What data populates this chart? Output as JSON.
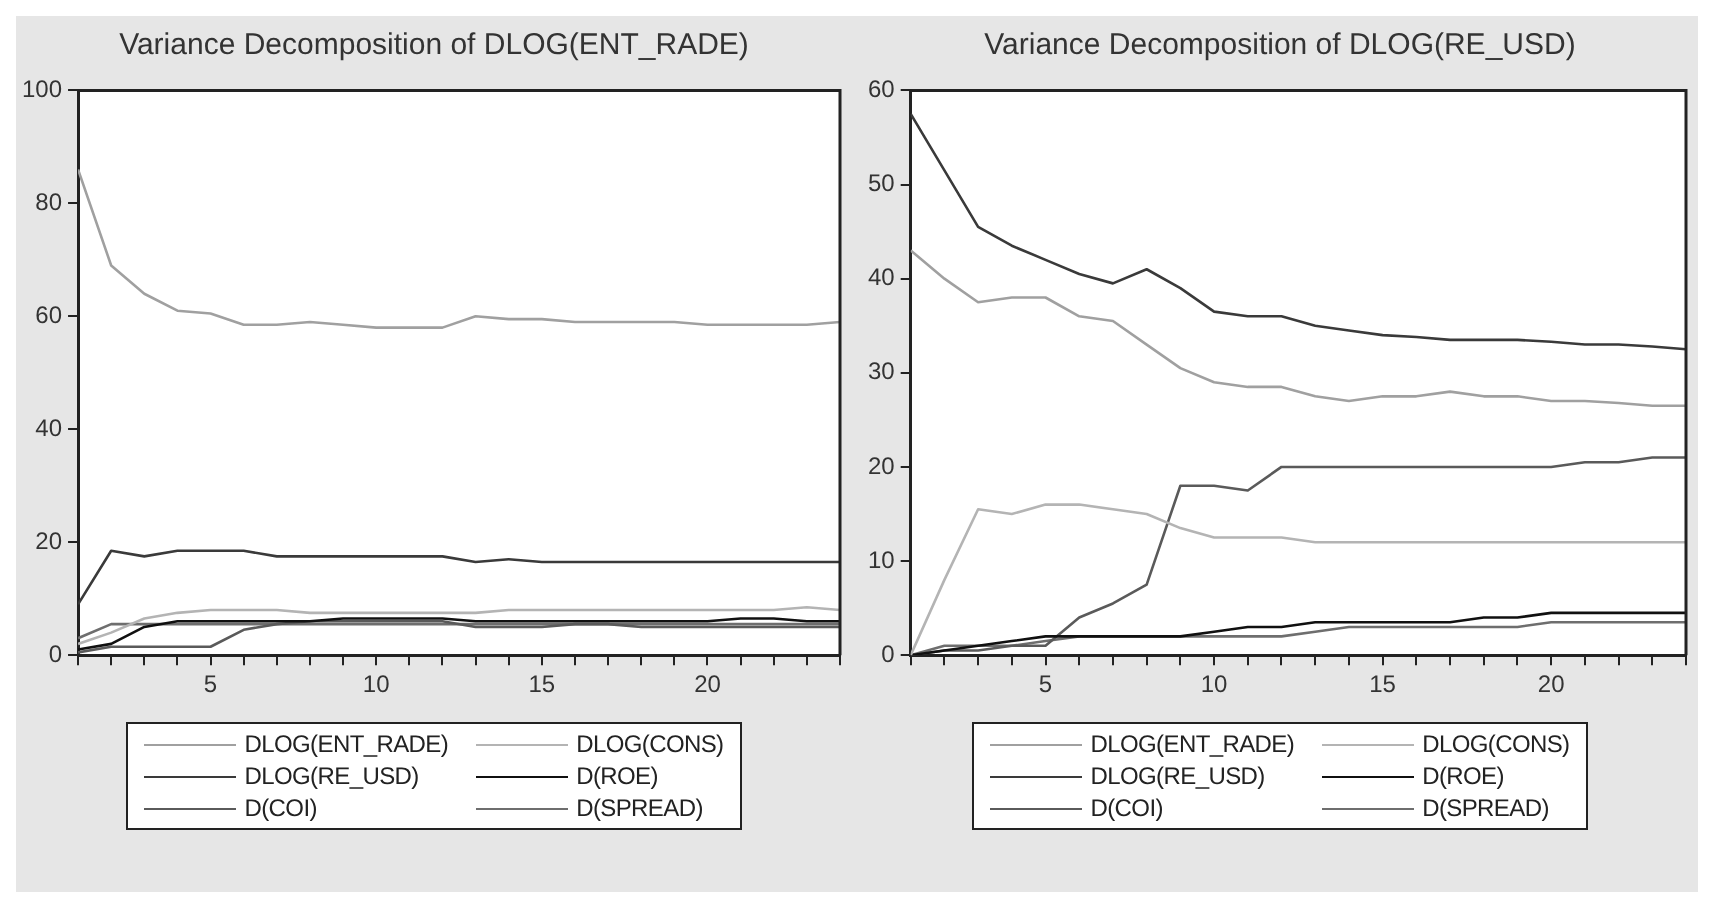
{
  "chart_data": [
    {
      "type": "line",
      "title": "Variance Decomposition of DLOG(ENT_RADE)",
      "x": [
        1,
        2,
        3,
        4,
        5,
        6,
        7,
        8,
        9,
        10,
        11,
        12,
        13,
        14,
        15,
        16,
        17,
        18,
        19,
        20,
        21,
        22,
        23,
        24
      ],
      "xlim": [
        1,
        24
      ],
      "xticks": [
        {
          "value": 1,
          "label": null
        },
        {
          "value": 2,
          "label": null
        },
        {
          "value": 3,
          "label": null
        },
        {
          "value": 4,
          "label": null
        },
        5,
        {
          "value": 6,
          "label": null
        },
        {
          "value": 7,
          "label": null
        },
        {
          "value": 8,
          "label": null
        },
        {
          "value": 9,
          "label": null
        },
        10,
        {
          "value": 11,
          "label": null
        },
        {
          "value": 12,
          "label": null
        },
        {
          "value": 13,
          "label": null
        },
        {
          "value": 14,
          "label": null
        },
        15,
        {
          "value": 16,
          "label": null
        },
        {
          "value": 17,
          "label": null
        },
        {
          "value": 18,
          "label": null
        },
        {
          "value": 19,
          "label": null
        },
        20,
        {
          "value": 21,
          "label": null
        },
        {
          "value": 22,
          "label": null
        },
        {
          "value": 23,
          "label": null
        },
        {
          "value": 24,
          "label": null
        }
      ],
      "ylim": [
        0,
        100
      ],
      "yticks": [
        0,
        20,
        40,
        60,
        80,
        100
      ],
      "grid": false,
      "legend": "bottom",
      "marker": "none",
      "line_style": "solid",
      "series": [
        {
          "name": "DLOG(ENT_RADE)",
          "color": "#a0a0a0",
          "values": [
            86,
            69,
            64,
            61,
            60.5,
            58.5,
            58.5,
            59,
            58.5,
            58,
            58,
            58,
            60,
            59.5,
            59.5,
            59,
            59,
            59,
            59,
            58.5,
            58.5,
            58.5,
            58.5,
            59
          ]
        },
        {
          "name": "DLOG(CONS)",
          "color": "#b4b4b4",
          "values": [
            2,
            4,
            6.5,
            7.5,
            8,
            8,
            8,
            7.5,
            7.5,
            7.5,
            7.5,
            7.5,
            7.5,
            8,
            8,
            8,
            8,
            8,
            8,
            8,
            8,
            8,
            8.5,
            8
          ]
        },
        {
          "name": "DLOG(RE_USD)",
          "color": "#3a3a3a",
          "values": [
            9,
            18.5,
            17.5,
            18.5,
            18.5,
            18.5,
            17.5,
            17.5,
            17.5,
            17.5,
            17.5,
            17.5,
            16.5,
            17,
            16.5,
            16.5,
            16.5,
            16.5,
            16.5,
            16.5,
            16.5,
            16.5,
            16.5,
            16.5
          ]
        },
        {
          "name": "D(ROE)",
          "color": "#101010",
          "values": [
            1,
            2,
            5,
            6,
            6,
            6,
            6,
            6,
            6.5,
            6.5,
            6.5,
            6.5,
            6,
            6,
            6,
            6,
            6,
            6,
            6,
            6,
            6.5,
            6.5,
            6,
            6
          ]
        },
        {
          "name": "D(COI)",
          "color": "#5a5a5a",
          "values": [
            0.5,
            1.5,
            1.5,
            1.5,
            1.5,
            4.5,
            5.5,
            6,
            6,
            6,
            6,
            6,
            5,
            5,
            5,
            5.5,
            5.5,
            5,
            5,
            5,
            5,
            5,
            5,
            5
          ]
        },
        {
          "name": "D(SPREAD)",
          "color": "#6e6e6e",
          "values": [
            3,
            5.5,
            5.5,
            5.5,
            5.5,
            5.5,
            5.5,
            5.5,
            5.5,
            5.5,
            5.5,
            5.5,
            5.5,
            5.5,
            5.5,
            5.5,
            5.5,
            5.5,
            5.5,
            5.5,
            5.5,
            5.5,
            5.5,
            5.5
          ]
        }
      ]
    },
    {
      "type": "line",
      "title": "Variance Decomposition of DLOG(RE_USD)",
      "x": [
        1,
        2,
        3,
        4,
        5,
        6,
        7,
        8,
        9,
        10,
        11,
        12,
        13,
        14,
        15,
        16,
        17,
        18,
        19,
        20,
        21,
        22,
        23,
        24
      ],
      "xlim": [
        1,
        24
      ],
      "xticks": [
        {
          "value": 1,
          "label": null
        },
        {
          "value": 2,
          "label": null
        },
        {
          "value": 3,
          "label": null
        },
        {
          "value": 4,
          "label": null
        },
        5,
        {
          "value": 6,
          "label": null
        },
        {
          "value": 7,
          "label": null
        },
        {
          "value": 8,
          "label": null
        },
        {
          "value": 9,
          "label": null
        },
        10,
        {
          "value": 11,
          "label": null
        },
        {
          "value": 12,
          "label": null
        },
        {
          "value": 13,
          "label": null
        },
        {
          "value": 14,
          "label": null
        },
        15,
        {
          "value": 16,
          "label": null
        },
        {
          "value": 17,
          "label": null
        },
        {
          "value": 18,
          "label": null
        },
        {
          "value": 19,
          "label": null
        },
        20,
        {
          "value": 21,
          "label": null
        },
        {
          "value": 22,
          "label": null
        },
        {
          "value": 23,
          "label": null
        },
        {
          "value": 24,
          "label": null
        }
      ],
      "ylim": [
        0,
        60
      ],
      "yticks": [
        0,
        10,
        20,
        30,
        40,
        50,
        60
      ],
      "grid": false,
      "legend": "bottom",
      "marker": "none",
      "line_style": "solid",
      "series": [
        {
          "name": "DLOG(ENT_RADE)",
          "color": "#a0a0a0",
          "values": [
            43,
            40,
            37.5,
            38,
            38,
            36,
            35.5,
            33,
            30.5,
            29,
            28.5,
            28.5,
            27.5,
            27,
            27.5,
            27.5,
            28,
            27.5,
            27.5,
            27,
            27,
            26.8,
            26.5,
            26.5
          ]
        },
        {
          "name": "DLOG(CONS)",
          "color": "#b4b4b4",
          "values": [
            0,
            8,
            15.5,
            15,
            16,
            16,
            15.5,
            15,
            13.5,
            12.5,
            12.5,
            12.5,
            12,
            12,
            12,
            12,
            12,
            12,
            12,
            12,
            12,
            12,
            12,
            12
          ]
        },
        {
          "name": "DLOG(RE_USD)",
          "color": "#3a3a3a",
          "values": [
            57.5,
            51.5,
            45.5,
            43.5,
            42,
            40.5,
            39.5,
            41,
            39,
            36.5,
            36,
            36,
            35,
            34.5,
            34,
            33.8,
            33.5,
            33.5,
            33.5,
            33.3,
            33,
            33,
            32.8,
            32.5
          ]
        },
        {
          "name": "D(ROE)",
          "color": "#101010",
          "values": [
            0,
            0.5,
            1,
            1.5,
            2,
            2,
            2,
            2,
            2,
            2.5,
            3,
            3,
            3.5,
            3.5,
            3.5,
            3.5,
            3.5,
            4,
            4,
            4.5,
            4.5,
            4.5,
            4.5,
            4.5
          ]
        },
        {
          "name": "D(COI)",
          "color": "#5a5a5a",
          "values": [
            0,
            0.5,
            0.5,
            1,
            1,
            4,
            5.5,
            7.5,
            18,
            18,
            17.5,
            20,
            20,
            20,
            20,
            20,
            20,
            20,
            20,
            20,
            20.5,
            20.5,
            21,
            21
          ]
        },
        {
          "name": "D(SPREAD)",
          "color": "#6e6e6e",
          "values": [
            0,
            1,
            1,
            1,
            1.5,
            2,
            2,
            2,
            2,
            2,
            2,
            2,
            2.5,
            3,
            3,
            3,
            3,
            3,
            3,
            3.5,
            3.5,
            3.5,
            3.5,
            3.5
          ]
        }
      ]
    }
  ]
}
